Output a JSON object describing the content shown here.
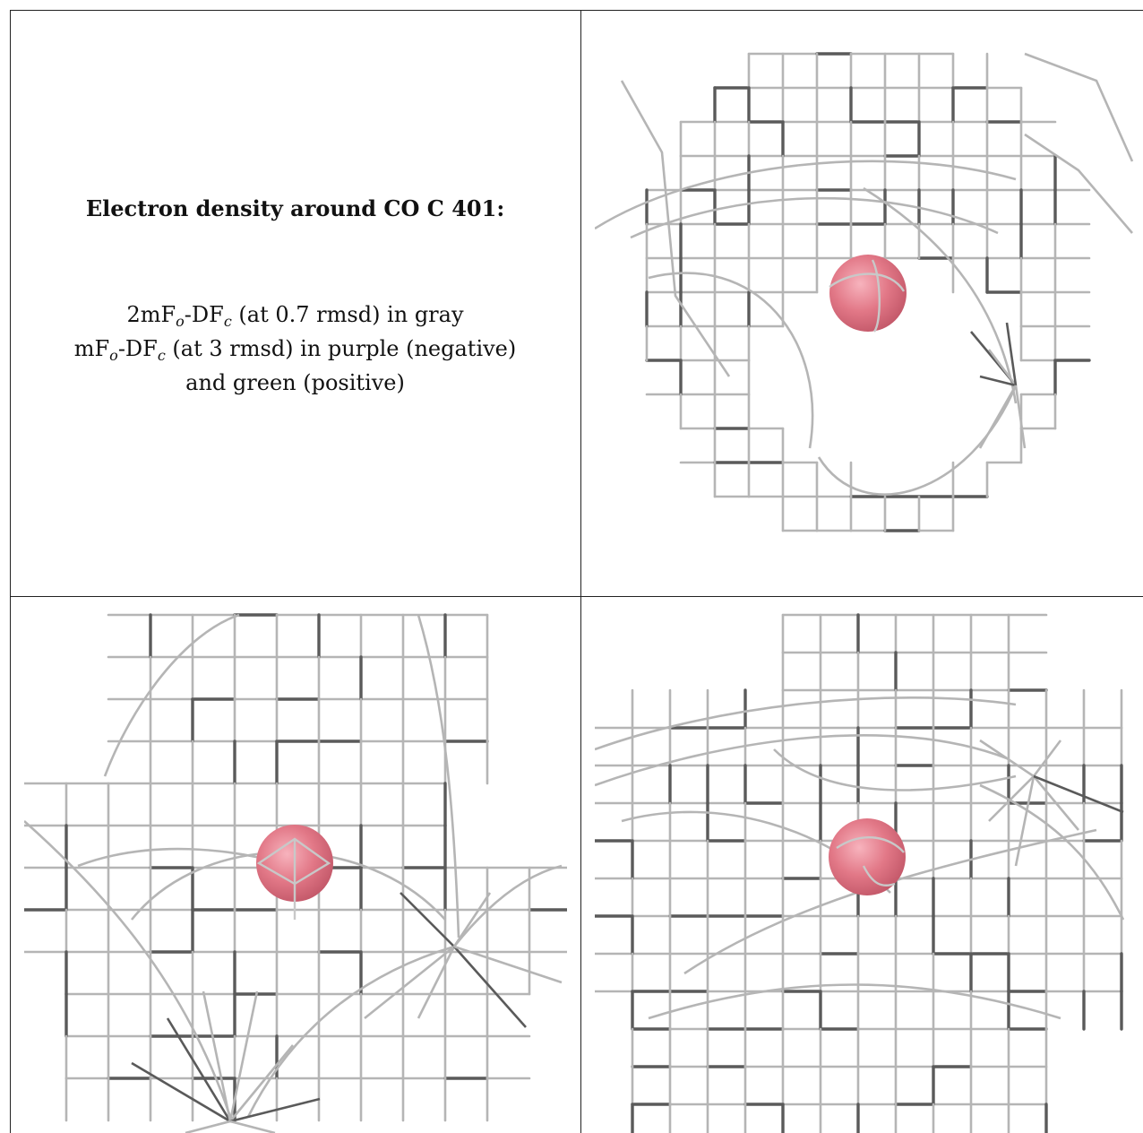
{
  "caption": {
    "title": "Electron density around CO C 401:",
    "line1": {
      "a": "2mF",
      "s1": "o",
      "b": "-DF",
      "s2": "c",
      "c": " (at 0.7 rmsd) in gray"
    },
    "line2": {
      "a": "mF",
      "s1": "o",
      "b": "-DF",
      "s2": "c",
      "c": " (at 3 rmsd) in purple (negative)"
    },
    "line3": "and green (positive)"
  },
  "colors": {
    "mesh_gray": "#b5b5b5",
    "mesh_dark": "#5a5a5a",
    "atom": "#e27887",
    "positive": "#22dd22"
  },
  "views": [
    {
      "name": "view-top-right"
    },
    {
      "name": "view-bottom-left"
    },
    {
      "name": "view-bottom-right"
    }
  ]
}
